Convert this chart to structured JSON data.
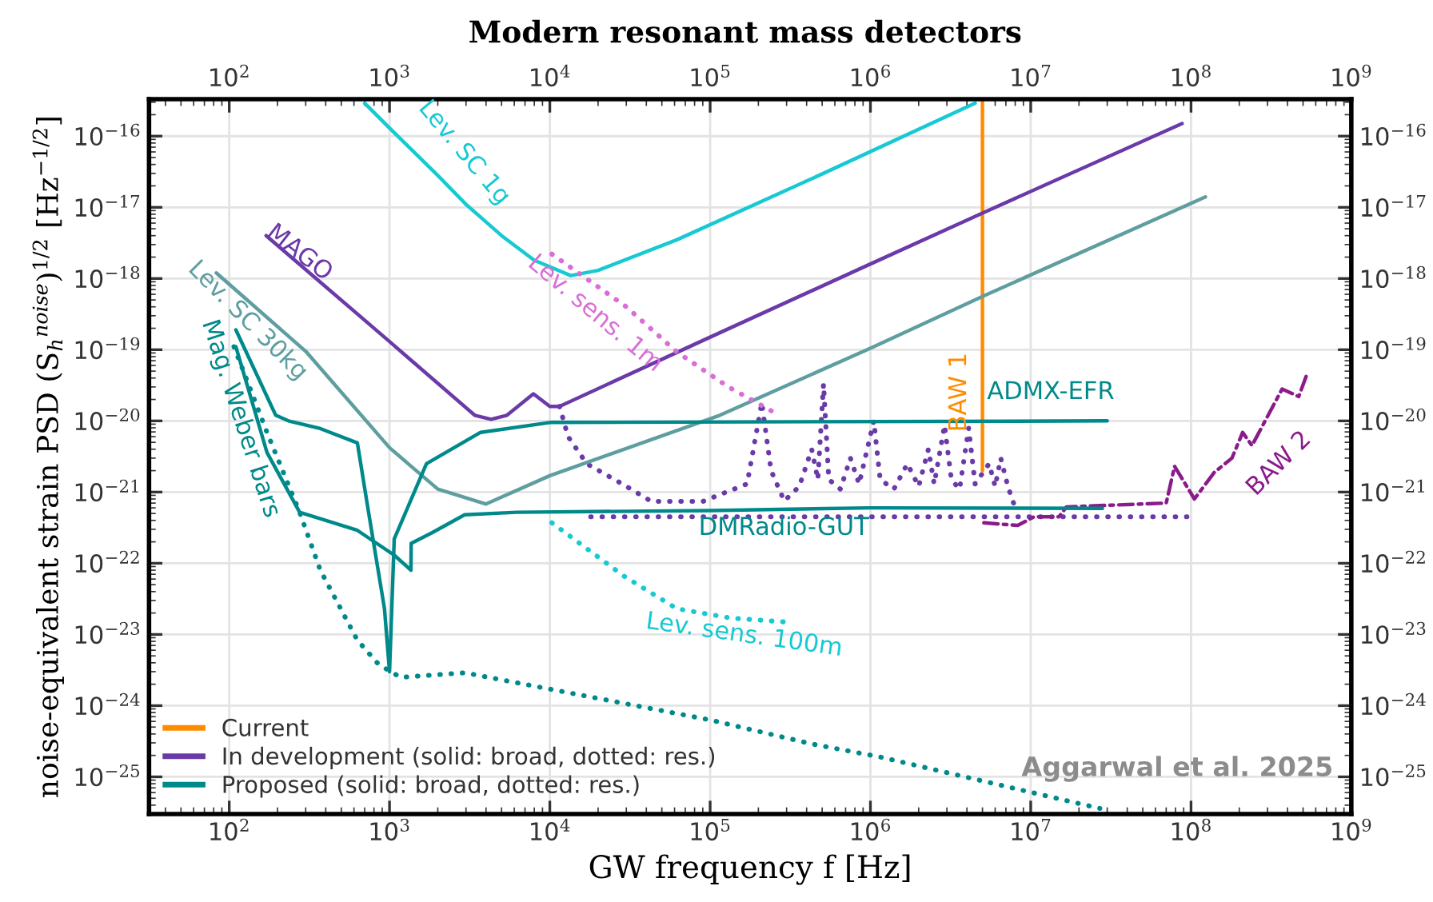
{
  "chart_data": {
    "type": "line",
    "title": "Modern resonant mass detectors",
    "xlabel": "GW frequency f [Hz]",
    "ylabel": "noise-equivalent strain PSD (S$_{h}$$^{noise}$)$^{1/2}$ [Hz$^{−1/2}$]",
    "log": "xy",
    "grid": true,
    "legend": "bottom left",
    "xlim": [
      31.6,
      1000000000
    ],
    "ylim": [
      3e-26,
      3.3e-16
    ],
    "xticks": [
      {
        "value": 100,
        "label": "10$^{2}$"
      },
      {
        "value": 1000,
        "label": "10$^{3}$"
      },
      {
        "value": 10000,
        "label": "10$^{4}$"
      },
      {
        "value": 100000,
        "label": "10$^{5}$"
      },
      {
        "value": 1000000,
        "label": "10$^{6}$"
      },
      {
        "value": 10000000,
        "label": "10$^{7}$"
      },
      {
        "value": 100000000,
        "label": "10$^{8}$"
      },
      {
        "value": 1000000000,
        "label": "10$^{9}$"
      }
    ],
    "yticks": [
      {
        "value": 1e-25,
        "label": "10$^{−25}$"
      },
      {
        "value": 1e-24,
        "label": "10$^{−24}$"
      },
      {
        "value": 1e-23,
        "label": "10$^{−23}$"
      },
      {
        "value": 1e-22,
        "label": "10$^{−22}$"
      },
      {
        "value": 1e-21,
        "label": "10$^{−21}$"
      },
      {
        "value": 1e-20,
        "label": "10$^{−20}$"
      },
      {
        "value": 1e-19,
        "label": "10$^{−19}$"
      },
      {
        "value": 1e-18,
        "label": "10$^{−18}$"
      },
      {
        "value": 1e-17,
        "label": "10$^{−17}$"
      },
      {
        "value": 1e-16,
        "label": "10$^{−16}$"
      }
    ],
    "series": [
      {
        "name": "Current",
        "color": "#ff8c00",
        "line_style": "solid",
        "x": [
          5000000,
          5000000
        ],
        "values": [
          3e-16,
          2e-21
        ]
      },
      {
        "name": "In development (solid: broad, dotted: res.)",
        "color": "#6a3aa8",
        "line_style": "solid",
        "x": [
          170,
          1000,
          3400,
          4300,
          5400,
          7900,
          10000,
          11500,
          100000,
          1000000,
          5000000,
          88000000
        ],
        "values": [
          4e-18,
          1.3e-19,
          1.2e-20,
          1.05e-20,
          1.2e-20,
          2.4e-20,
          1.6e-20,
          1.6e-20,
          1.5e-19,
          1.6e-18,
          8.3e-18,
          1.5e-16
        ]
      },
      {
        "color": "#6a3aa8",
        "line_style": "dotted",
        "x": [
          11500,
          13000,
          17000,
          29000,
          43000,
          90000,
          170000,
          210000,
          240000,
          290000,
          360000,
          430000,
          470000,
          510000,
          550000,
          650000,
          750000,
          850000,
          1050000,
          1150000,
          1400000,
          1700000,
          2000000,
          2300000,
          2500000,
          2900000,
          3200000,
          3600000,
          4100000,
          4500000,
          5500000,
          6000000,
          6500000,
          7200000,
          8000000
        ],
        "values": [
          1.6e-20,
          6e-21,
          2.5e-21,
          1.26e-21,
          7.4e-22,
          7.4e-22,
          1.3e-21,
          1.8e-20,
          2e-21,
          7.5e-22,
          1.2e-21,
          4e-21,
          1.5e-21,
          3.3e-20,
          1.5e-21,
          1.1e-21,
          3e-21,
          1.3e-21,
          1e-20,
          1.5e-21,
          1.1e-21,
          2.5e-21,
          1.2e-21,
          4e-21,
          1.3e-21,
          8.7e-21,
          1.5e-21,
          1.1e-21,
          7.9e-21,
          1.3e-21,
          2.5e-21,
          1.2e-21,
          3e-21,
          1.2e-21,
          6e-22
        ]
      },
      {
        "color": "#6a3aa8",
        "line_style": "dotted",
        "x": [
          18000,
          95000000
        ],
        "values": [
          4.5e-22,
          4.5e-22
        ]
      },
      {
        "color": "#8b1a8b",
        "line_style": "dashdot",
        "x": [
          5100000,
          8300000,
          10500000,
          15000000,
          16700000,
          70000000,
          79000000,
          105000000,
          140000000,
          180000000,
          210000000,
          240000000,
          370000000,
          470000000,
          530000000
        ],
        "values": [
          3.7e-22,
          3.4e-22,
          4.5e-22,
          4.5e-22,
          6.2e-22,
          7e-22,
          2.3e-21,
          8e-22,
          1.9e-21,
          3e-21,
          6.9e-21,
          4.5e-21,
          2.8e-20,
          2.2e-20,
          4.6e-20
        ]
      },
      {
        "color": "#17c9d3",
        "line_style": "solid",
        "x": [
          700,
          1000,
          2000,
          3000,
          5000,
          8000,
          13500,
          20000,
          62000,
          460000,
          4500000
        ],
        "values": [
          2.9e-16,
          1.3e-16,
          2.8e-17,
          1.1e-17,
          4e-18,
          1.8e-18,
          1.1e-18,
          1.3e-18,
          3.5e-18,
          2.7e-17,
          2.9e-16
        ]
      },
      {
        "color": "#5f9ea0",
        "line_style": "solid",
        "x": [
          83,
          300,
          1000,
          2000,
          4000,
          10000,
          115000,
          1000000,
          5000000,
          123000000
        ],
        "values": [
          1.2e-18,
          9.5e-20,
          4.2e-21,
          1.1e-21,
          6.8e-22,
          1.7e-21,
          1.2e-20,
          1.05e-19,
          5.6e-19,
          1.4e-17
        ]
      },
      {
        "color": "#d86fd6",
        "line_style": "dotted",
        "x": [
          10300,
          30000,
          62000,
          130000,
          270000
        ],
        "values": [
          2.2e-18,
          4e-19,
          9.3e-20,
          3e-20,
          1.2e-20
        ]
      },
      {
        "color": "#17c9d3",
        "line_style": "dotted",
        "x": [
          10300,
          29000,
          62000,
          135000,
          290000
        ],
        "values": [
          3.7e-22,
          6.6e-23,
          2.3e-23,
          1.7e-23,
          1.5e-23
        ]
      },
      {
        "name": "Proposed (solid: broad, dotted: res.)",
        "color": "#00898a",
        "line_style": "solid",
        "x": [
          110,
          195,
          234,
          370,
          630,
          740,
          930,
          1000,
          1070,
          1700,
          3700,
          10000,
          30000000
        ],
        "values": [
          1.9e-19,
          1.2e-20,
          1e-20,
          7.8e-21,
          4.9e-21,
          5.2e-22,
          2.3e-23,
          3e-24,
          2.2e-22,
          2.5e-21,
          6.9e-21,
          9.5e-21,
          1e-20
        ]
      },
      {
        "color": "#00898a",
        "line_style": "solid",
        "x": [
          110,
          172,
          275,
          630,
          1070,
          1360,
          1365,
          1850,
          2940,
          6200,
          100000,
          1000000,
          28000000
        ],
        "values": [
          1.1e-19,
          3.6e-21,
          5.2e-22,
          2.9e-22,
          1.3e-22,
          8e-23,
          1.9e-22,
          2.7e-22,
          4.8e-22,
          5.2e-22,
          5.5e-22,
          6e-22,
          5.9e-22
        ]
      },
      {
        "color": "#00898a",
        "line_style": "dotted",
        "x": [
          107,
          172,
          275,
          370,
          630,
          855,
          1170,
          2950,
          13500,
          100000,
          430000,
          1150000,
          27000000
        ],
        "values": [
          1.1e-19,
          6.9e-21,
          5.2e-22,
          8e-23,
          8.3e-24,
          3.8e-24,
          2.5e-24,
          2.9e-24,
          1.5e-24,
          6.3e-25,
          2.9e-25,
          1.9e-25,
          3.6e-26
        ]
      }
    ],
    "annotations": [
      "Lev. SC 1g",
      "MAGO",
      "Lev. SC 30kg",
      "Lev. sens. 1m",
      "BAW 1",
      "ADMX-EFR",
      "BAW 2",
      "DMRadio-GUT",
      "Lev. sens. 100m",
      "Mag. Weber bars",
      "Aggarwal et al. 2025"
    ]
  }
}
